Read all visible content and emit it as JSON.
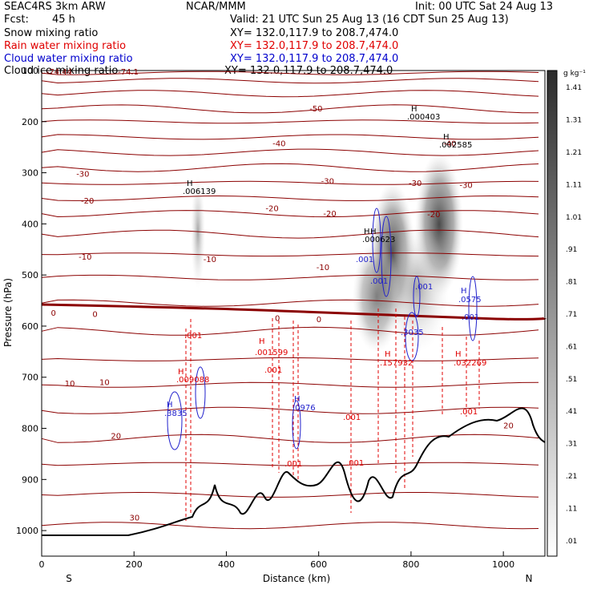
{
  "header": {
    "model": "SEAC4RS  3km ARW",
    "org": "NCAR/MMM",
    "init": "Init: 00 UTC Sat 24 Aug 13",
    "fcst_label": "Fcst:",
    "fcst_value": "45 h",
    "valid": "Valid: 21 UTC Sun 25 Aug 13 (16 CDT Sun 25 Aug 13)",
    "fields": [
      {
        "name": "Snow mixing ratio",
        "xy": "XY=  132.0,117.9 to 208.7,474.0",
        "color": "#000000"
      },
      {
        "name": "Rain water mixing ratio",
        "xy": "XY=  132.0,117.9 to 208.7,474.0",
        "color": "#e00000"
      },
      {
        "name": "Cloud water mixing ratio",
        "xy": "XY=  132.0,117.9 to 208.7,474.0",
        "color": "#0000cc"
      },
      {
        "name": "Cloud ice mixing ratio",
        "xy": "XY=  132.0,117.9 to 208.7,474.0",
        "color": "#000000"
      }
    ]
  },
  "colorbar": {
    "units": "g kg⁻¹",
    "labels": [
      ".01",
      ".11",
      ".21",
      ".31",
      ".41",
      ".51",
      ".61",
      ".71",
      ".81",
      ".91",
      "1.01",
      "1.11",
      "1.21",
      "1.31",
      "1.41"
    ]
  },
  "chart_data": {
    "type": "contour-cross-section",
    "xlabel": "Distance (km)",
    "ylabel": "Pressure (hPa)",
    "x_ticks": [
      "0",
      "200",
      "400",
      "600",
      "800",
      "1000"
    ],
    "y_ticks": [
      "100",
      "200",
      "300",
      "400",
      "500",
      "600",
      "700",
      "800",
      "900",
      "1000"
    ],
    "xlim": [
      0,
      1090
    ],
    "ylim": [
      1050,
      100
    ],
    "endpoints": {
      "left": "S",
      "right": "N"
    },
    "temperature_contours": [
      {
        "label": "-74.44",
        "x": 10,
        "p": 108
      },
      {
        "label": "-74.1",
        "x": 165,
        "p": 108
      },
      {
        "label": "-50",
        "x": 580,
        "p": 180
      },
      {
        "label": "-40",
        "x": 500,
        "p": 248
      },
      {
        "label": "-40",
        "x": 870,
        "p": 248
      },
      {
        "label": "-30",
        "x": 75,
        "p": 308
      },
      {
        "label": "-30",
        "x": 605,
        "p": 322
      },
      {
        "label": "-30",
        "x": 905,
        "p": 330
      },
      {
        "label": "-30",
        "x": 795,
        "p": 326
      },
      {
        "label": "-20",
        "x": 85,
        "p": 360
      },
      {
        "label": "-20",
        "x": 485,
        "p": 375
      },
      {
        "label": "-20",
        "x": 610,
        "p": 385
      },
      {
        "label": "-20",
        "x": 835,
        "p": 387
      },
      {
        "label": "-10",
        "x": 80,
        "p": 470
      },
      {
        "label": "-10",
        "x": 350,
        "p": 475
      },
      {
        "label": "-10",
        "x": 595,
        "p": 490
      },
      {
        "label": "0",
        "x": 20,
        "p": 580
      },
      {
        "label": "0",
        "x": 110,
        "p": 582
      },
      {
        "label": "0",
        "x": 505,
        "p": 590
      },
      {
        "label": "0",
        "x": 595,
        "p": 592
      },
      {
        "label": "10",
        "x": 50,
        "p": 718
      },
      {
        "label": "10",
        "x": 125,
        "p": 715
      },
      {
        "label": "20",
        "x": 150,
        "p": 820
      },
      {
        "label": "20",
        "x": 1000,
        "p": 800
      },
      {
        "label": "30",
        "x": 190,
        "p": 980
      }
    ],
    "rain_labels": [
      "H",
      ".001599",
      ".001",
      ".001",
      ".001",
      ".001",
      ".157932",
      ".032269",
      ".001",
      ".001",
      ".009088"
    ],
    "cloud_water_labels": [
      "H",
      ".3835",
      ".0976",
      ".001",
      ".001",
      ".001",
      ".3035",
      ".0575",
      ".001"
    ],
    "ice_labels": [
      "H",
      ".006139",
      ".000403",
      ".002585",
      ".000623"
    ],
    "rain_label_pos": [
      [
        295,
        705
      ],
      [
        470,
        645
      ],
      [
        470,
        670
      ],
      [
        300,
        620
      ],
      [
        470,
        722
      ],
      [
        680,
        770
      ],
      [
        680,
        870
      ],
      [
        740,
        662
      ],
      [
        890,
        662
      ],
      [
        935,
        765
      ],
      [
        303,
        720
      ]
    ],
    "rain_label_text_pos": [
      [
        0,
        3,
        0
      ],
      [
        1,
        2,
        1
      ],
      [
        2,
        1,
        2
      ]
    ]
  }
}
